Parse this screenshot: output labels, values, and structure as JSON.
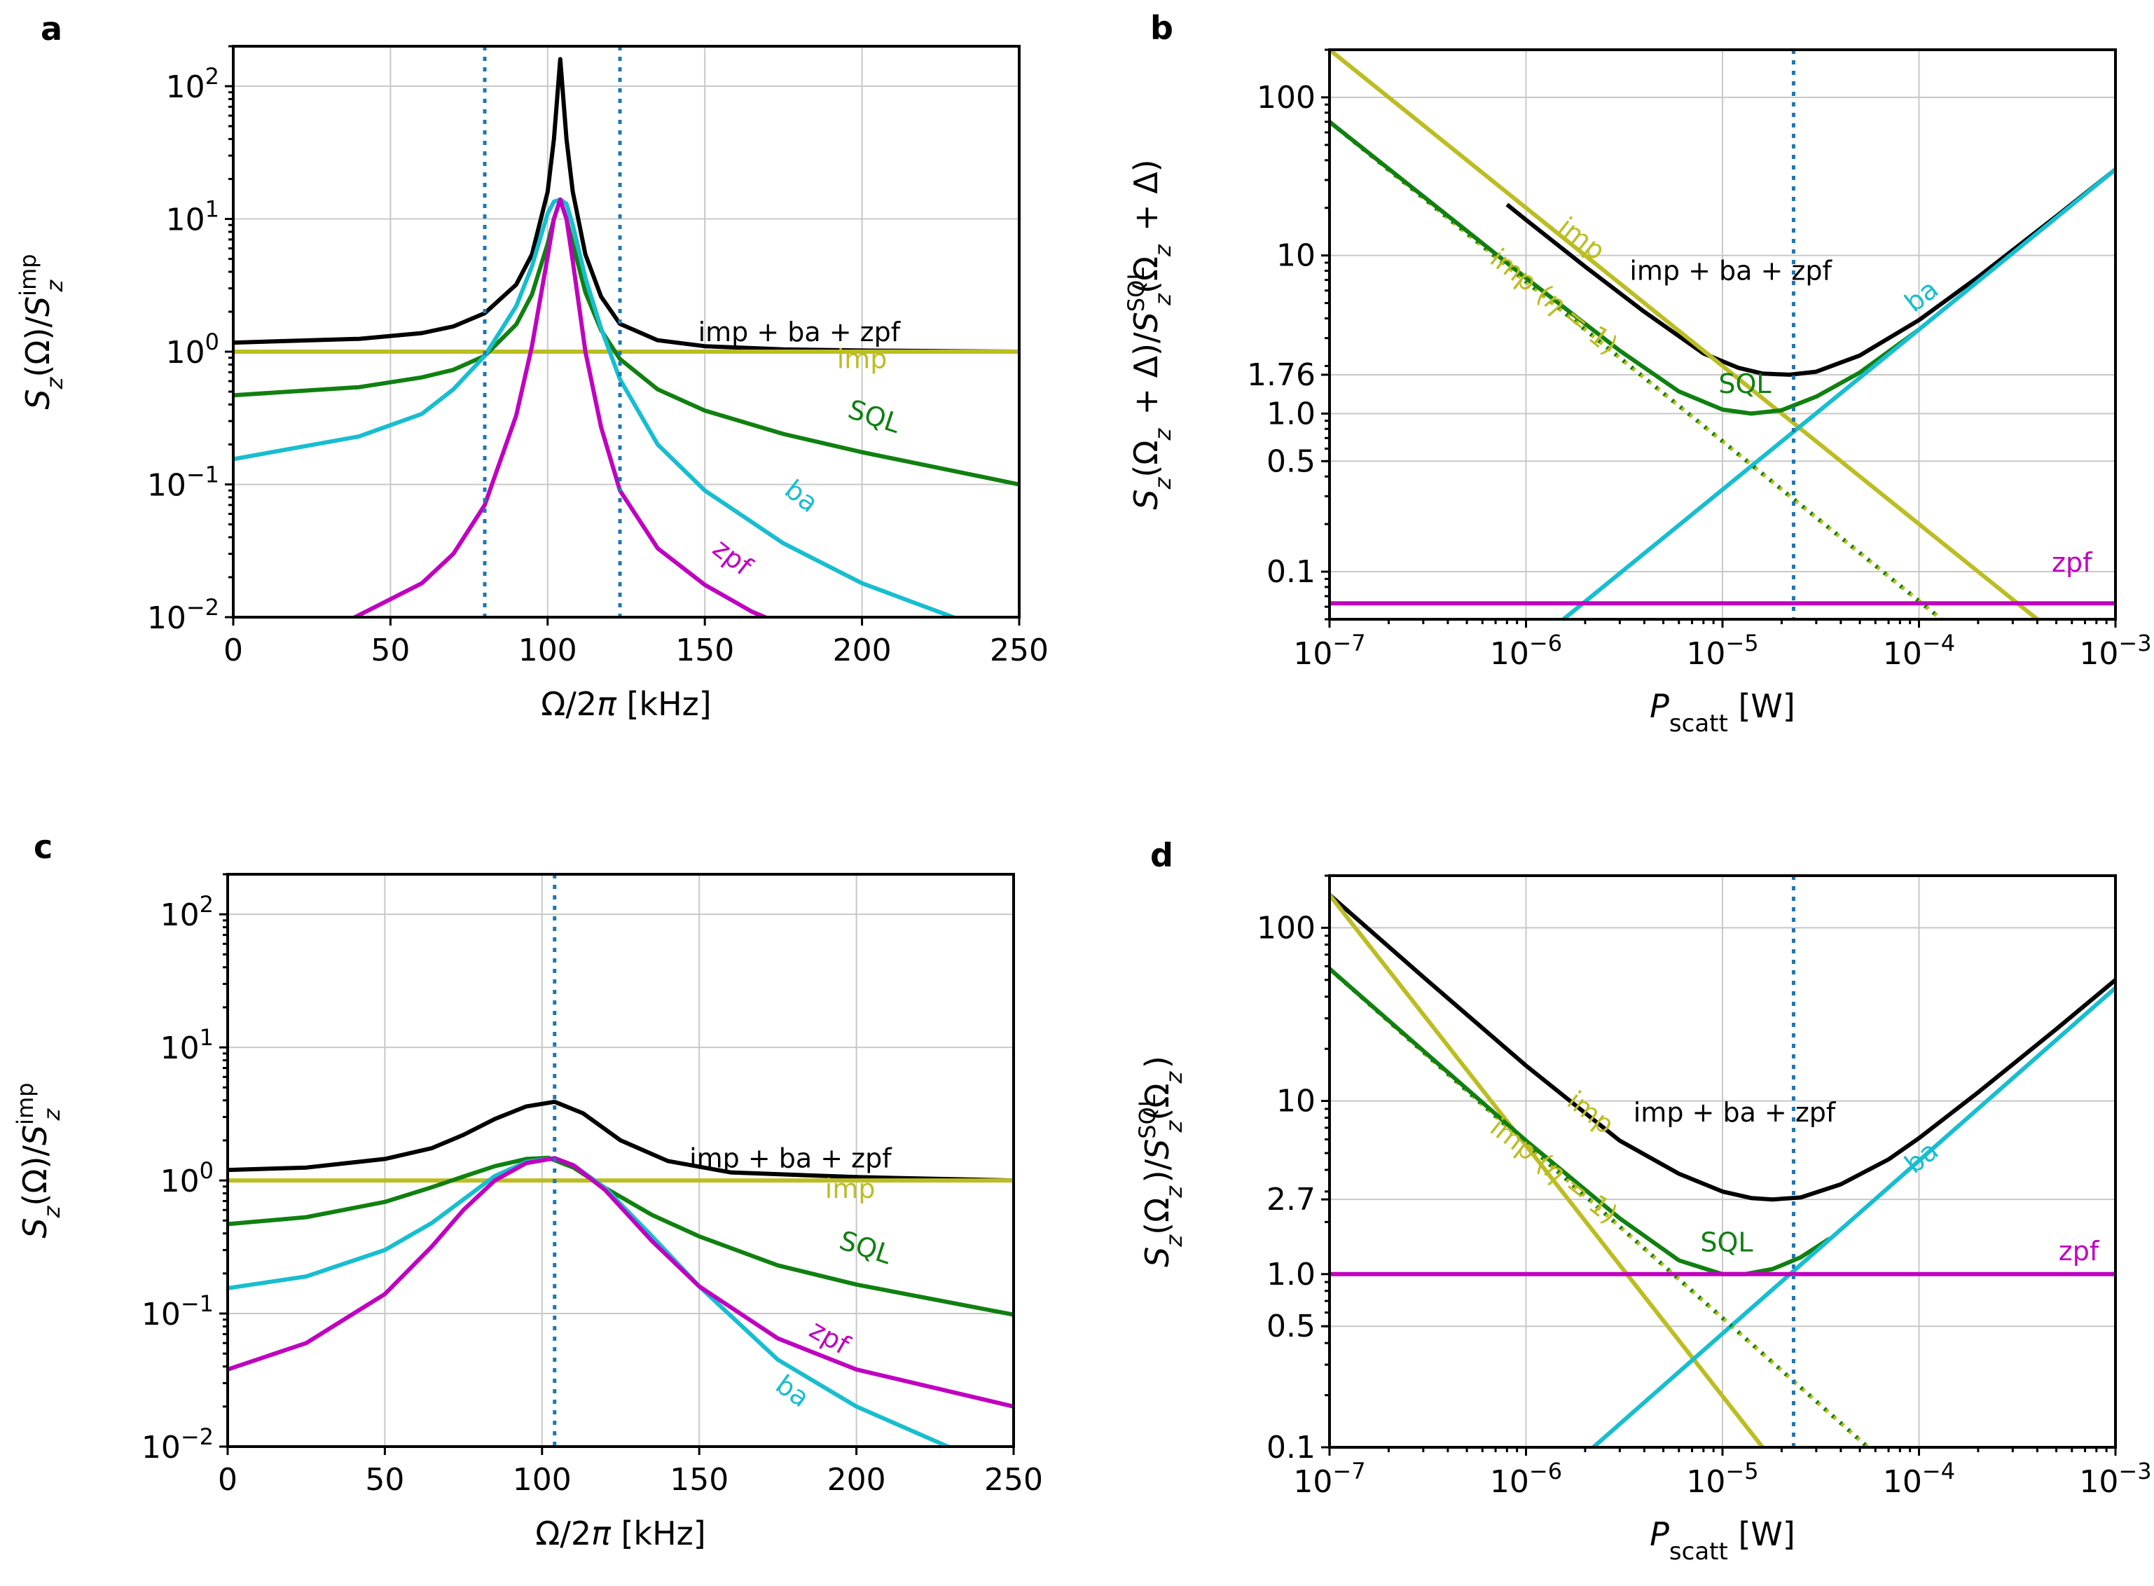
{
  "colors": {
    "total": "#000000",
    "imp": "#bcbd22",
    "sql": "#108010",
    "ba": "#17becf",
    "zpf": "#c000c0",
    "marker": "#1f77b4",
    "grid": "#c8c8c8"
  },
  "chart_data": [
    {
      "id": "a",
      "panel_letter": "a",
      "type": "line",
      "xscale": "linear",
      "yscale": "log",
      "xlim": [
        0,
        250
      ],
      "ylim": [
        0.01,
        200
      ],
      "xticks": [
        0,
        50,
        100,
        150,
        200,
        250
      ],
      "xtick_labels": [
        "0",
        "50",
        "100",
        "150",
        "200",
        "250"
      ],
      "ytick_values": [
        0.01,
        0.1,
        1,
        10,
        100
      ],
      "ytick_labels": [
        {
          "base": "10",
          "exp": "−2"
        },
        {
          "base": "10",
          "exp": "−1"
        },
        {
          "base": "10",
          "exp": "0"
        },
        {
          "base": "10",
          "exp": "1"
        },
        {
          "base": "10",
          "exp": "2"
        }
      ],
      "xlabel": "Ω/2π [kHz]",
      "ylabel": "Sz(Ω)/Sz^imp",
      "vlines": [
        80,
        123
      ],
      "series": [
        {
          "name": "imp + ba + zpf",
          "color": "#000000",
          "x": [
            0,
            40,
            60,
            70,
            80,
            90,
            95,
            100,
            102,
            104,
            106,
            108,
            112,
            117,
            123,
            135,
            150,
            175,
            200,
            250
          ],
          "y": [
            1.17,
            1.25,
            1.38,
            1.55,
            1.95,
            3.2,
            5.4,
            16,
            40,
            160,
            40,
            16,
            5.4,
            2.6,
            1.62,
            1.22,
            1.1,
            1.04,
            1.02,
            1.0
          ]
        },
        {
          "name": "imp",
          "color": "#bcbd22",
          "x": [
            0,
            250
          ],
          "y": [
            1.0,
            1.0
          ]
        },
        {
          "name": "SQL",
          "color": "#108010",
          "x": [
            0,
            40,
            60,
            70,
            80,
            90,
            95,
            100,
            102,
            104,
            106,
            108,
            112,
            117,
            123,
            135,
            150,
            175,
            200,
            250
          ],
          "y": [
            0.47,
            0.54,
            0.64,
            0.73,
            0.93,
            1.6,
            2.7,
            6.5,
            10,
            14,
            10,
            6.5,
            2.8,
            1.45,
            0.88,
            0.52,
            0.36,
            0.24,
            0.175,
            0.1
          ]
        },
        {
          "name": "ba",
          "color": "#17becf",
          "x": [
            0,
            40,
            60,
            70,
            80,
            90,
            95,
            100,
            102,
            104,
            106,
            108,
            112,
            117,
            123,
            135,
            150,
            175,
            200,
            230
          ],
          "y": [
            0.155,
            0.23,
            0.34,
            0.52,
            0.93,
            2.2,
            4.4,
            11,
            13.5,
            14,
            13,
            9,
            3.6,
            1.5,
            0.62,
            0.2,
            0.09,
            0.036,
            0.018,
            0.0098
          ]
        },
        {
          "name": "zpf",
          "color": "#c000c0",
          "x": [
            38,
            60,
            70,
            80,
            90,
            95,
            100,
            102,
            104,
            106,
            108,
            112,
            117,
            123,
            135,
            150,
            165,
            170
          ],
          "y": [
            0.0098,
            0.018,
            0.03,
            0.07,
            0.33,
            1.1,
            5.2,
            10,
            14,
            10,
            4.8,
            1.0,
            0.27,
            0.09,
            0.033,
            0.0175,
            0.011,
            0.0098
          ]
        }
      ],
      "labels": [
        {
          "text": "imp + ba + zpf",
          "color": "#000000",
          "x": 180,
          "y": 1.2,
          "rotate": 0
        },
        {
          "text": "imp",
          "color": "#bcbd22",
          "x": 200,
          "y": 0.75,
          "rotate": 0
        },
        {
          "text": "SQL",
          "color": "#108010",
          "x": 203,
          "y": 0.28,
          "rotate": 18
        },
        {
          "text": "ba",
          "color": "#17becf",
          "x": 179,
          "y": 0.072,
          "rotate": 38
        },
        {
          "text": "zpf",
          "color": "#c000c0",
          "x": 157,
          "y": 0.025,
          "rotate": 38
        }
      ]
    },
    {
      "id": "b",
      "panel_letter": "b",
      "type": "line",
      "xscale": "log",
      "yscale": "log",
      "xlim": [
        1e-07,
        0.001
      ],
      "ylim": [
        0.05,
        200
      ],
      "xticks": [
        1e-07,
        1e-06,
        1e-05,
        0.0001,
        0.001
      ],
      "xtick_labels": [
        {
          "base": "10",
          "exp": "−7"
        },
        {
          "base": "10",
          "exp": "−6"
        },
        {
          "base": "10",
          "exp": "−5"
        },
        {
          "base": "10",
          "exp": "−4"
        },
        {
          "base": "10",
          "exp": "−3"
        }
      ],
      "ytick_values": [
        0.1,
        0.5,
        1,
        1.76,
        10,
        100
      ],
      "ytick_labels": [
        "0.1",
        "0.5",
        "1.0",
        "1.76",
        "10",
        "100"
      ],
      "xlabel": "Pscatt [W]",
      "ylabel": "Sz(Ωz + Δ)/Sz^SQL(Ωz + Δ)",
      "vlines": [
        2.3e-05
      ],
      "series": [
        {
          "name": "imp + ba + zpf",
          "color": "#000000",
          "x": [
            8e-07,
            1e-06,
            2e-06,
            4e-06,
            8e-06,
            1.2e-05,
            1.6e-05,
            2.2e-05,
            3e-05,
            5e-05,
            0.0001,
            0.0002,
            0.0005,
            0.001
          ],
          "y": [
            21,
            16.8,
            8.5,
            4.4,
            2.4,
            1.95,
            1.79,
            1.76,
            1.84,
            2.33,
            3.9,
            7.3,
            17.7,
            35
          ]
        },
        {
          "name": "imp",
          "color": "#bcbd22",
          "x": [
            1e-07,
            0.0004
          ],
          "y": [
            200,
            0.05
          ]
        },
        {
          "name": "imp (η = 1)",
          "color": "#bcbd22",
          "x": [
            1e-07,
            0.00013
          ],
          "y": [
            70,
            0.05
          ],
          "dashed": true
        },
        {
          "name": "SQL",
          "color": "#108010",
          "x": [
            1e-07,
            1e-06,
            3e-06,
            6e-06,
            1e-05,
            1.4e-05,
            2e-05,
            3e-05,
            5e-05,
            0.0001
          ],
          "y": [
            70,
            7.2,
            2.5,
            1.38,
            1.06,
            1.0,
            1.05,
            1.28,
            1.82,
            3.4
          ],
          "dashed": false
        },
        {
          "name": "ba",
          "color": "#17becf",
          "x": [
            1.55e-06,
            0.001
          ],
          "y": [
            0.05,
            35
          ]
        },
        {
          "name": "zpf",
          "color": "#c000c0",
          "x": [
            1e-07,
            0.001
          ],
          "y": [
            0.063,
            0.063
          ]
        }
      ],
      "labels": [
        {
          "text": "imp + ba + zpf",
          "color": "#000000",
          "x": 1.1e-05,
          "y": 7.0,
          "rotate": 0
        },
        {
          "text": "imp",
          "color": "#bcbd22",
          "x": 1.8e-06,
          "y": 11.5,
          "rotate": 38
        },
        {
          "text": "imp (η = 1)",
          "color": "#bcbd22",
          "x": 1.3e-06,
          "y": 4.6,
          "rotate": 38
        },
        {
          "text": "SQL",
          "color": "#108010",
          "x": 1.3e-05,
          "y": 1.35,
          "rotate": 0
        },
        {
          "text": "ba",
          "color": "#17becf",
          "x": 0.00011,
          "y": 5.0,
          "rotate": -38
        },
        {
          "text": "zpf",
          "color": "#c000c0",
          "x": 0.0006,
          "y": 0.1,
          "rotate": 0
        }
      ]
    },
    {
      "id": "c",
      "panel_letter": "c",
      "type": "line",
      "xscale": "linear",
      "yscale": "log",
      "xlim": [
        0,
        250
      ],
      "ylim": [
        0.01,
        200
      ],
      "xticks": [
        0,
        50,
        100,
        150,
        200,
        250
      ],
      "xtick_labels": [
        "0",
        "50",
        "100",
        "150",
        "200",
        "250"
      ],
      "ytick_values": [
        0.01,
        0.1,
        1,
        10,
        100
      ],
      "ytick_labels": [
        {
          "base": "10",
          "exp": "−2"
        },
        {
          "base": "10",
          "exp": "−1"
        },
        {
          "base": "10",
          "exp": "0"
        },
        {
          "base": "10",
          "exp": "1"
        },
        {
          "base": "10",
          "exp": "2"
        }
      ],
      "xlabel": "Ω/2π [kHz]",
      "ylabel": "Sz(Ω)/Sz^imp",
      "vlines": [
        104
      ],
      "series": [
        {
          "name": "imp + ba + zpf",
          "color": "#000000",
          "x": [
            0,
            25,
            50,
            65,
            75,
            85,
            95,
            104,
            113,
            125,
            140,
            160,
            200,
            250
          ],
          "y": [
            1.2,
            1.25,
            1.45,
            1.75,
            2.2,
            2.9,
            3.6,
            3.9,
            3.2,
            2.0,
            1.4,
            1.15,
            1.06,
            1.0
          ]
        },
        {
          "name": "imp",
          "color": "#bcbd22",
          "x": [
            0,
            250
          ],
          "y": [
            1.0,
            1.0
          ]
        },
        {
          "name": "SQL",
          "color": "#108010",
          "x": [
            0,
            25,
            50,
            65,
            75,
            85,
            95,
            102,
            110,
            120,
            135,
            150,
            175,
            200,
            250
          ],
          "y": [
            0.47,
            0.53,
            0.69,
            0.89,
            1.07,
            1.28,
            1.45,
            1.48,
            1.25,
            0.88,
            0.55,
            0.38,
            0.23,
            0.165,
            0.098
          ]
        },
        {
          "name": "ba",
          "color": "#17becf",
          "x": [
            0,
            25,
            50,
            65,
            75,
            85,
            95,
            104,
            110,
            120,
            135,
            150,
            175,
            200,
            230
          ],
          "y": [
            0.155,
            0.19,
            0.3,
            0.48,
            0.72,
            1.08,
            1.38,
            1.47,
            1.3,
            0.88,
            0.38,
            0.16,
            0.045,
            0.02,
            0.0098
          ]
        },
        {
          "name": "zpf",
          "color": "#c000c0",
          "x": [
            0,
            25,
            50,
            65,
            75,
            85,
            95,
            104,
            110,
            120,
            135,
            150,
            175,
            200,
            250
          ],
          "y": [
            0.038,
            0.06,
            0.14,
            0.32,
            0.6,
            1.0,
            1.35,
            1.47,
            1.3,
            0.85,
            0.35,
            0.16,
            0.065,
            0.038,
            0.02
          ]
        }
      ],
      "labels": [
        {
          "text": "imp + ba + zpf",
          "color": "#000000",
          "x": 179,
          "y": 1.25,
          "rotate": 0
        },
        {
          "text": "imp",
          "color": "#bcbd22",
          "x": 198,
          "y": 0.74,
          "rotate": 0
        },
        {
          "text": "SQL",
          "color": "#108010",
          "x": 202,
          "y": 0.27,
          "rotate": 18
        },
        {
          "text": "zpf",
          "color": "#c000c0",
          "x": 190,
          "y": 0.058,
          "rotate": 30
        },
        {
          "text": "ba",
          "color": "#17becf",
          "x": 178,
          "y": 0.023,
          "rotate": 36
        }
      ]
    },
    {
      "id": "d",
      "panel_letter": "d",
      "type": "line",
      "xscale": "log",
      "yscale": "log",
      "xlim": [
        1e-07,
        0.001
      ],
      "ylim": [
        0.1,
        200
      ],
      "xticks": [
        1e-07,
        1e-06,
        1e-05,
        0.0001,
        0.001
      ],
      "xtick_labels": [
        {
          "base": "10",
          "exp": "−7"
        },
        {
          "base": "10",
          "exp": "−6"
        },
        {
          "base": "10",
          "exp": "−5"
        },
        {
          "base": "10",
          "exp": "−4"
        },
        {
          "base": "10",
          "exp": "−3"
        }
      ],
      "ytick_values": [
        0.1,
        0.5,
        1,
        2.7,
        10,
        100
      ],
      "ytick_labels": [
        "0.1",
        "0.5",
        "1.0",
        "2.7",
        "10",
        "100"
      ],
      "xlabel": "Pscatt [W]",
      "ylabel": "Sz(Ωz)/Sz^SQL(Ωz)",
      "vlines": [
        2.3e-05
      ],
      "series": [
        {
          "name": "imp + ba + zpf",
          "color": "#000000",
          "x": [
            1e-07,
            3e-07,
            1e-06,
            3e-06,
            6e-06,
            1e-05,
            1.4e-05,
            1.8e-05,
            2.5e-05,
            4e-05,
            7e-05,
            0.0001,
            0.0002,
            0.0005,
            0.001
          ],
          "y": [
            155,
            52,
            16,
            5.9,
            3.8,
            3.0,
            2.75,
            2.7,
            2.77,
            3.3,
            4.6,
            6.1,
            11.2,
            26,
            50
          ]
        },
        {
          "name": "imp",
          "color": "#bcbd22",
          "x": [
            1e-07,
            1.6e-05
          ],
          "y": [
            155,
            0.1
          ]
        },
        {
          "name": "imp (η = 1)",
          "color": "#bcbd22",
          "x": [
            1e-07,
            5.5e-05
          ],
          "y": [
            58,
            0.1
          ],
          "dashed": true
        },
        {
          "name": "SQL",
          "color": "#108010",
          "x": [
            1e-07,
            1e-06,
            3e-06,
            6e-06,
            1e-05,
            1.3e-05,
            1.8e-05,
            2.5e-05,
            3.5e-05
          ],
          "y": [
            58,
            5.9,
            2.1,
            1.2,
            1.0,
            1.0,
            1.07,
            1.25,
            1.6
          ],
          "dashed": false
        },
        {
          "name": "ba",
          "color": "#17becf",
          "x": [
            2.2e-06,
            0.001
          ],
          "y": [
            0.1,
            45
          ]
        },
        {
          "name": "zpf",
          "color": "#c000c0",
          "x": [
            1e-07,
            0.001
          ],
          "y": [
            1.0,
            1.0
          ]
        }
      ],
      "labels": [
        {
          "text": "imp + ba + zpf",
          "color": "#000000",
          "x": 1.15e-05,
          "y": 7.6,
          "rotate": 0
        },
        {
          "text": "imp",
          "color": "#bcbd22",
          "x": 2e-06,
          "y": 7.8,
          "rotate": 38
        },
        {
          "text": "imp (η = 1)",
          "color": "#bcbd22",
          "x": 1.3e-06,
          "y": 3.6,
          "rotate": 38
        },
        {
          "text": "SQL",
          "color": "#108010",
          "x": 1.05e-05,
          "y": 1.35,
          "rotate": 0
        },
        {
          "text": "ba",
          "color": "#17becf",
          "x": 0.00011,
          "y": 4.3,
          "rotate": -38
        },
        {
          "text": "zpf",
          "color": "#c000c0",
          "x": 0.00065,
          "y": 1.2,
          "rotate": 0
        }
      ]
    }
  ]
}
